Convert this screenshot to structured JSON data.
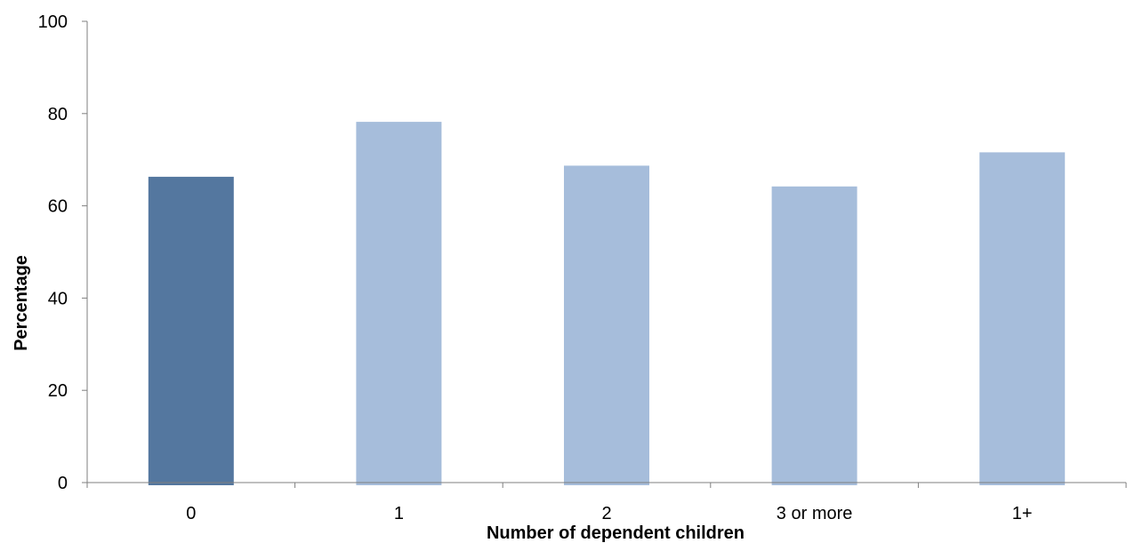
{
  "chart_data": {
    "type": "bar",
    "title": "",
    "xlabel": "Number of dependent children",
    "ylabel": "Percentage",
    "categories": [
      "0",
      "1",
      "2",
      "3 or more",
      "1+"
    ],
    "values": [
      66.3,
      78.2,
      68.7,
      64.2,
      71.6
    ],
    "ylim": [
      0,
      100
    ],
    "yticks": [
      0,
      20,
      40,
      60,
      80,
      100
    ],
    "grid": false,
    "legend": "none",
    "colors": {
      "highlight": "#54779F",
      "default": "#A6BDDB",
      "axis": "#7F7F7F"
    },
    "highlight_index": 0
  }
}
